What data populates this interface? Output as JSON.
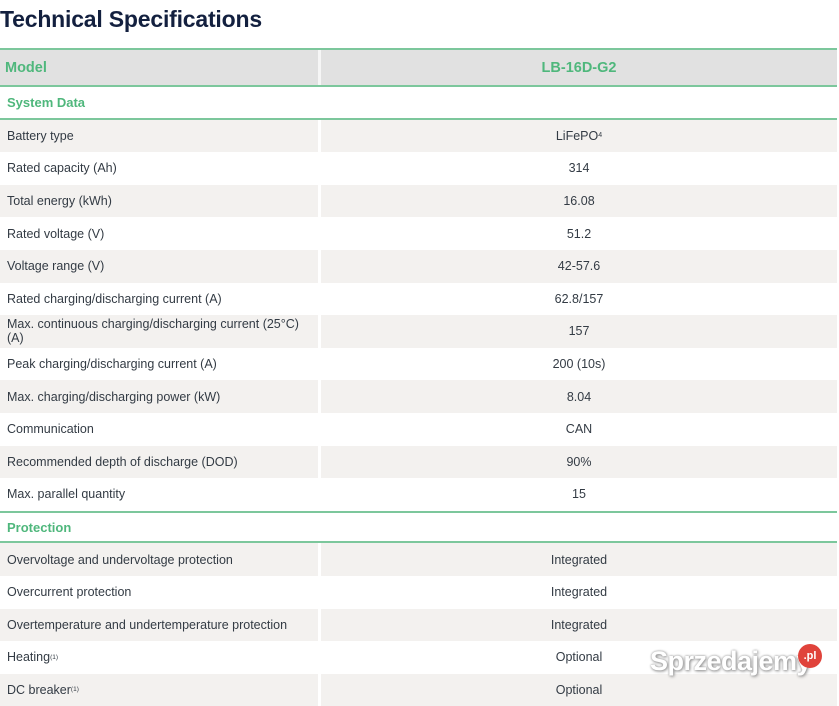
{
  "page": {
    "title": "Technical Specifications"
  },
  "table": {
    "header": {
      "label": "Model",
      "value": "LB-16D-G2"
    },
    "sections": [
      {
        "title": "System Data",
        "rows": [
          {
            "label": "Battery type",
            "value": "LiFePO",
            "value_sub": "4"
          },
          {
            "label": "Rated capacity (Ah)",
            "value": "314"
          },
          {
            "label": "Total energy (kWh)",
            "value": "16.08"
          },
          {
            "label": "Rated voltage (V)",
            "value": "51.2"
          },
          {
            "label": "Voltage range (V)",
            "value": "42-57.6"
          },
          {
            "label": "Rated charging/discharging current (A)",
            "value": "62.8/157"
          },
          {
            "label": "Max. continuous charging/discharging current (25°C) (A)",
            "value": "157"
          },
          {
            "label": "Peak charging/discharging current (A)",
            "value": "200 (10s)"
          },
          {
            "label": "Max. charging/discharging power (kW)",
            "value": "8.04"
          },
          {
            "label": "Communication",
            "value": "CAN"
          },
          {
            "label": "Recommended depth of discharge (DOD)",
            "value": "90%"
          },
          {
            "label": "Max. parallel quantity",
            "value": "15"
          }
        ]
      },
      {
        "title": "Protection",
        "rows": [
          {
            "label": "Overvoltage and undervoltage protection",
            "value": "Integrated"
          },
          {
            "label": "Overcurrent protection",
            "value": "Integrated"
          },
          {
            "label": "Overtemperature and undertemperature protection",
            "value": "Integrated"
          },
          {
            "label": "Heating",
            "label_sup": "(1)",
            "value": "Optional"
          },
          {
            "label": "DC breaker",
            "label_sup": "(1)",
            "value": "Optional"
          }
        ]
      }
    ]
  },
  "watermark": {
    "text": "Sprzedajemy",
    "badge": ".pl"
  },
  "colors": {
    "accent_green": "#4fb77c",
    "rule_green": "#7cc79c",
    "title_navy": "#13203f",
    "alt_row": "#f3f1ef",
    "header_bg": "#e1e1e1"
  }
}
